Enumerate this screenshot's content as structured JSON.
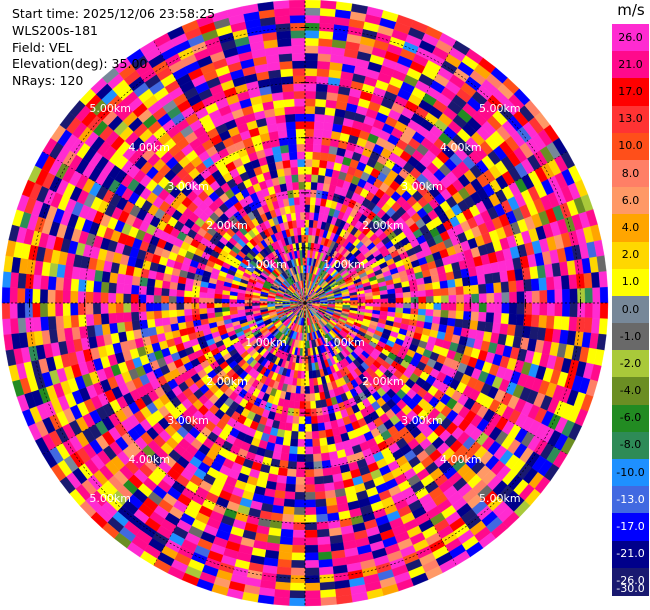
{
  "info": {
    "start_time": "Start time: 2025/12/06 23:58:25",
    "station": "WLS200s-181",
    "field": "Field: VEL",
    "elevation": "Elevation(deg): 35.00",
    "nrays": "NRays: 120"
  },
  "chart_data": {
    "type": "heatmap",
    "projection": "polar-ppi",
    "title": "",
    "n_rays": 120,
    "range_rings_km": [
      1.0,
      2.0,
      3.0,
      4.0,
      5.0
    ],
    "range_ring_labels": [
      "1.00km",
      "2.00km",
      "3.00km",
      "4.00km",
      "5.00km"
    ],
    "colorbar": {
      "unit": "m/s",
      "ticks": [
        "26.0",
        "21.0",
        "17.0",
        "13.0",
        "10.0",
        "8.0",
        "6.0",
        "4.0",
        "2.0",
        "1.0",
        "0.0",
        "-1.0",
        "-2.0",
        "-4.0",
        "-6.0",
        "-8.0",
        "-10.0",
        "-13.0",
        "-17.0",
        "-21.0",
        "-26.0",
        "-30.0"
      ],
      "colors": [
        "#ff2bd1",
        "#ff0a8c",
        "#ff0000",
        "#ff3333",
        "#ff4f1a",
        "#ff7f66",
        "#ff9966",
        "#ffa500",
        "#ffd700",
        "#ffff00",
        "#778899",
        "#696969",
        "#a9c93a",
        "#6b8e23",
        "#228b22",
        "#2e8b57",
        "#1e90ff",
        "#4169e1",
        "#0000ff",
        "#00008b",
        "#191970"
      ]
    }
  }
}
